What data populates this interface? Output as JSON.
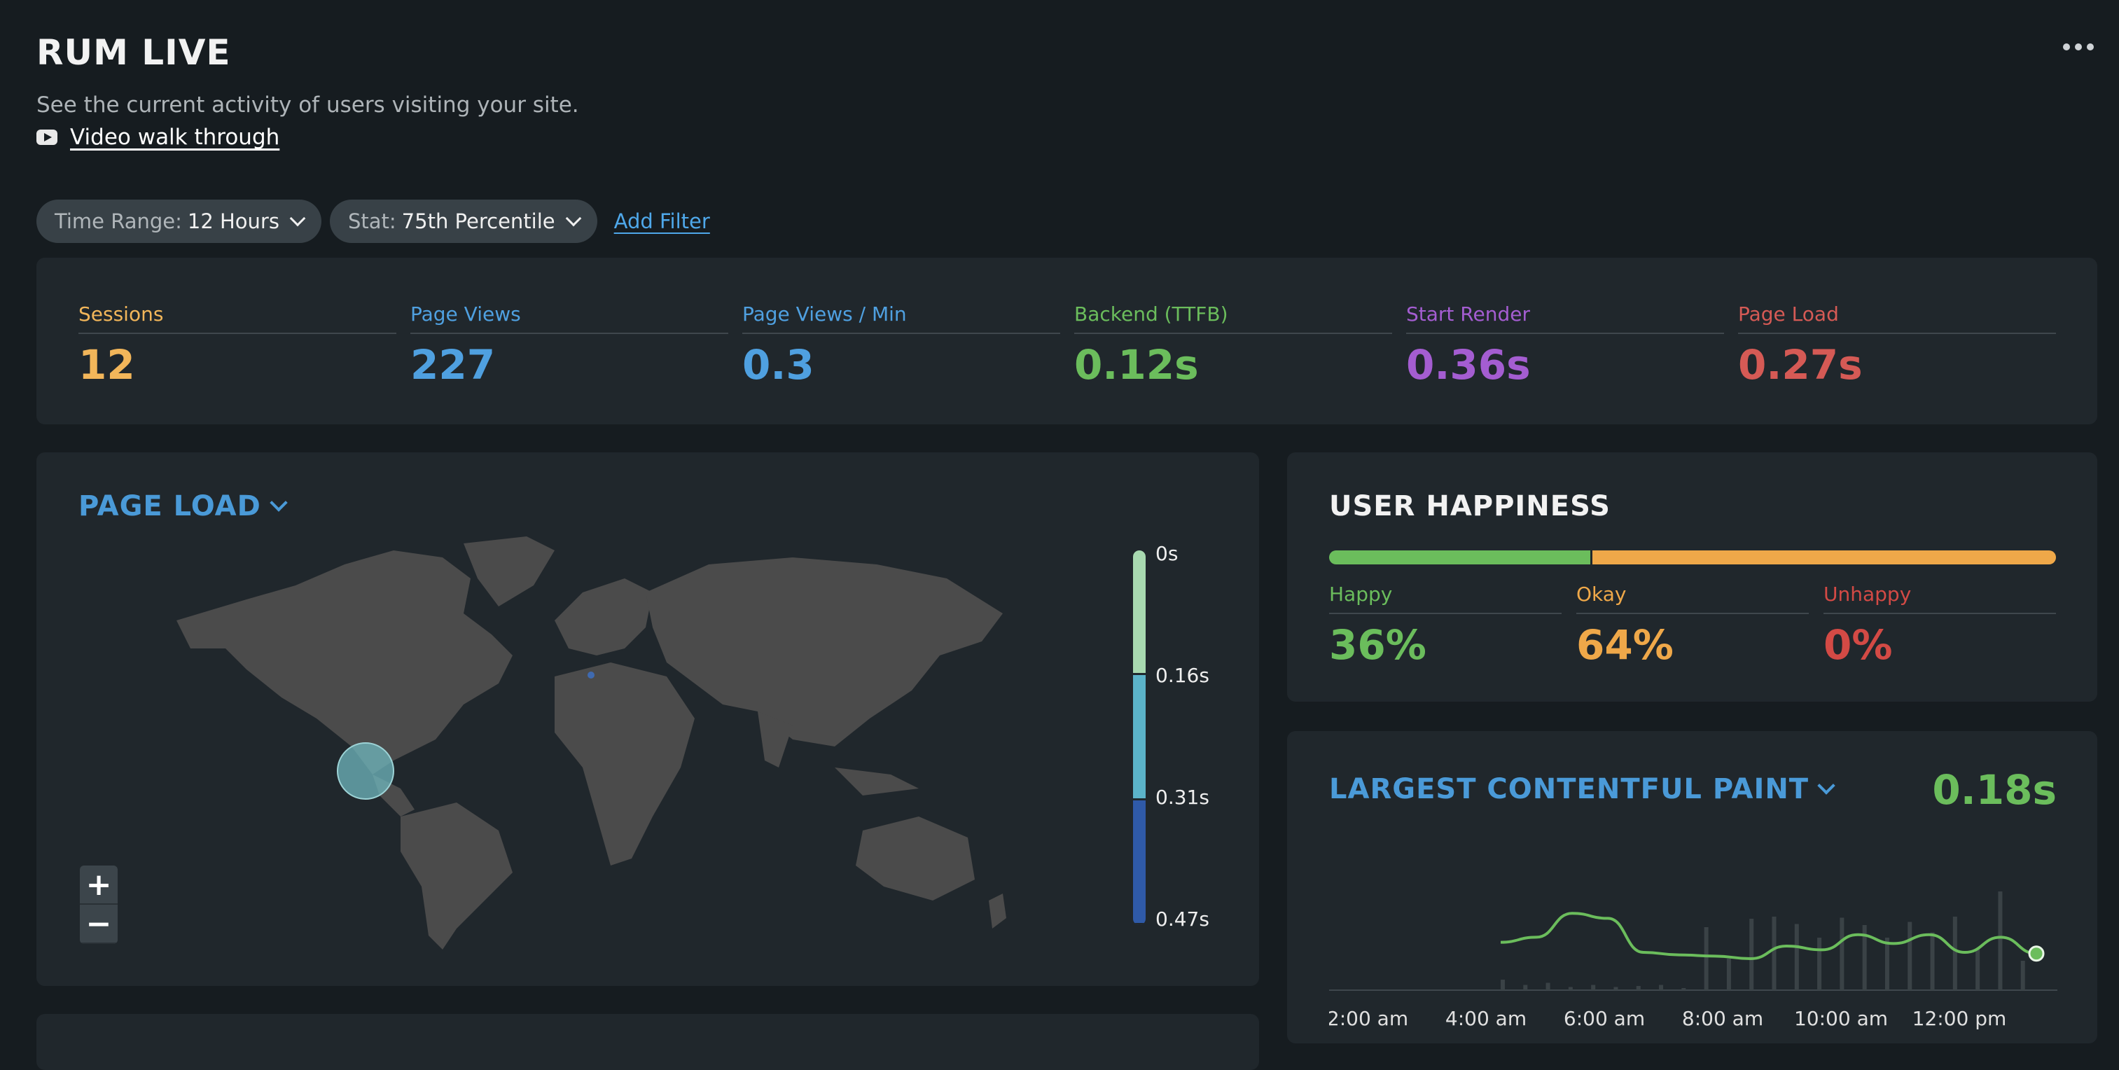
{
  "header": {
    "title": "RUM LIVE",
    "subtitle": "See the current activity of users visiting your site.",
    "walkthrough_label": "Video walk through",
    "menu_icon": "more-dots-icon"
  },
  "filters": {
    "time_range": {
      "key": "Time Range:",
      "value": "12 Hours"
    },
    "stat": {
      "key": "Stat:",
      "value": "75th Percentile"
    },
    "add_filter_label": "Add Filter"
  },
  "stats": [
    {
      "label": "Sessions",
      "value": "12",
      "color": "#f2b65a"
    },
    {
      "label": "Page Views",
      "value": "227",
      "color": "#4fa0e0"
    },
    {
      "label": "Page Views / Min",
      "value": "0.3",
      "color": "#4fa0e0"
    },
    {
      "label": "Backend (TTFB)",
      "value": "0.12s",
      "color": "#6bbd5c"
    },
    {
      "label": "Start Render",
      "value": "0.36s",
      "color": "#a45dd1"
    },
    {
      "label": "Page Load",
      "value": "0.27s",
      "color": "#d55a55"
    }
  ],
  "page_load_map": {
    "title": "PAGE LOAD",
    "zoom_in": "+",
    "zoom_out": "−",
    "legend": [
      "0s",
      "0.16s",
      "0.31s",
      "0.47s"
    ],
    "legend_colors": [
      "#a8d9b0",
      "#5bb3c9",
      "#2f5aa8"
    ]
  },
  "user_happiness": {
    "title": "USER HAPPINESS",
    "happy": {
      "label": "Happy",
      "value": "36%",
      "fraction": 0.36,
      "color": "#6bbd5c"
    },
    "okay": {
      "label": "Okay",
      "value": "64%",
      "fraction": 0.64,
      "color": "#efa849"
    },
    "unhappy": {
      "label": "Unhappy",
      "value": "0%",
      "fraction": 0,
      "color": "#d34a45"
    }
  },
  "lcp": {
    "title": "LARGEST CONTENTFUL PAINT",
    "value": "0.18s",
    "chart_data": {
      "type": "line",
      "x_ticks": [
        "2:00 am",
        "4:00 am",
        "6:00 am",
        "8:00 am",
        "10:00 am",
        "12:00 pm"
      ],
      "series": [
        {
          "values": [
            0.38,
            0.42,
            0.61,
            0.57,
            0.3,
            0.28,
            0.27,
            0.25,
            0.35,
            0.32,
            0.44,
            0.37,
            0.44,
            0.3,
            0.42,
            0.29
          ]
        }
      ],
      "bars": [
        0.1,
        0.05,
        0.07,
        0.03,
        0.05,
        0.03,
        0.04,
        0.05,
        0.02,
        0.6,
        0.3,
        0.68,
        0.7,
        0.63,
        0.5,
        0.69,
        0.62,
        0.5,
        0.65,
        0.55,
        0.7,
        0.4,
        0.94,
        0.28
      ],
      "line_color": "#6bbd5c"
    }
  }
}
